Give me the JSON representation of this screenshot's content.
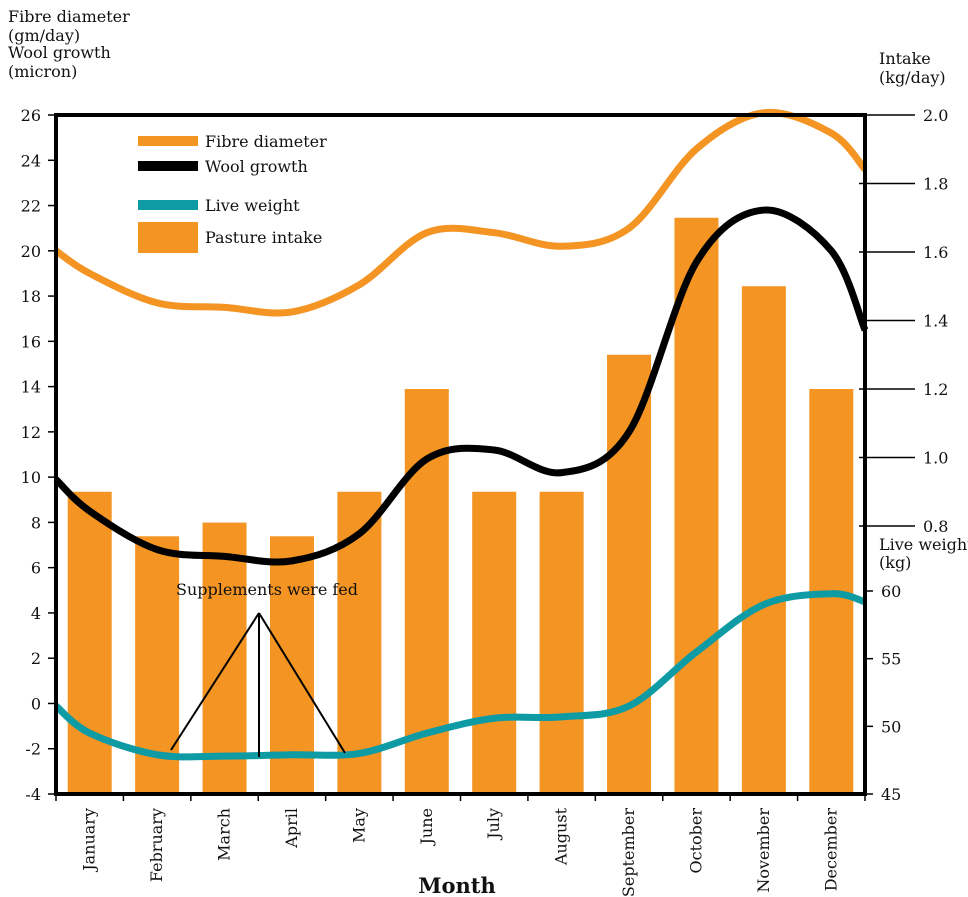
{
  "chart_data": {
    "type": "bar",
    "xlabel": "Month",
    "left_axis_title": [
      "Fibre diameter",
      "(gm/day)",
      "Wool growth",
      "(micron)"
    ],
    "right_axis_title_intake": [
      "Intake",
      "(kg/day)"
    ],
    "right_axis_title_weight": [
      "Live weight",
      "(kg)"
    ],
    "categories": [
      "January",
      "February",
      "March",
      "April",
      "May",
      "June",
      "July",
      "August",
      "September",
      "October",
      "November",
      "December"
    ],
    "y_left": {
      "ticks": [
        "26",
        "24",
        "22",
        "20",
        "18",
        "16",
        "14",
        "12",
        "10",
        "8",
        "6",
        "4",
        "2",
        "0",
        "-2",
        "-4"
      ],
      "range": [
        -4,
        26
      ]
    },
    "y_right_intake": {
      "ticks": [
        "2.0",
        "1.8",
        "1.6",
        "1.4",
        "1.2",
        "1.0",
        "0.8"
      ],
      "range": [
        0.8,
        2.0
      ]
    },
    "y_right_weight": {
      "ticks": [
        "60",
        "55",
        "50",
        "45"
      ],
      "range": [
        45,
        60
      ]
    },
    "legend": [
      "Fibre diameter",
      "Wool growth",
      "Live weight",
      "Pasture intake"
    ],
    "series": [
      {
        "name": "Pasture intake",
        "type": "bar",
        "axis": "intake",
        "color": "#F39423",
        "values": [
          0.9,
          0.77,
          0.81,
          0.77,
          0.9,
          1.2,
          0.9,
          0.9,
          1.3,
          1.7,
          1.5,
          1.2
        ]
      },
      {
        "name": "Fibre diameter",
        "type": "line",
        "axis": "left",
        "color": "#F39423",
        "x": [
          0,
          0.5,
          1.5,
          2.5,
          3.5,
          4.5,
          5.5,
          6.5,
          7.5,
          8.5,
          9.5,
          10.5,
          11.5,
          12
        ],
        "values": [
          20.0,
          19.0,
          17.7,
          17.5,
          17.3,
          18.5,
          20.8,
          20.8,
          20.2,
          21.0,
          24.5,
          26.1,
          25.2,
          23.6
        ]
      },
      {
        "name": "Wool growth",
        "type": "line",
        "axis": "left",
        "color": "#000000",
        "x": [
          0,
          0.5,
          1.5,
          2.5,
          3.5,
          4.5,
          5.5,
          6.5,
          7.5,
          8.5,
          9.5,
          10.5,
          11.5,
          12
        ],
        "values": [
          9.9,
          8.5,
          6.8,
          6.5,
          6.3,
          7.5,
          10.8,
          11.2,
          10.2,
          12.0,
          19.5,
          21.8,
          20.0,
          16.5
        ]
      },
      {
        "name": "Live weight",
        "type": "line",
        "axis": "weight",
        "color": "#0E9BA3",
        "x": [
          0,
          0.5,
          1.5,
          2.5,
          3.5,
          4.5,
          5.5,
          6.5,
          7.5,
          8.5,
          9.5,
          10.5,
          11.5,
          12
        ],
        "values": [
          51.5,
          49.5,
          47.9,
          47.8,
          47.9,
          48.0,
          49.5,
          50.6,
          50.7,
          51.5,
          55.5,
          59.0,
          59.8,
          59.2
        ]
      }
    ],
    "annotation": {
      "text": "Supplements were fed"
    }
  }
}
